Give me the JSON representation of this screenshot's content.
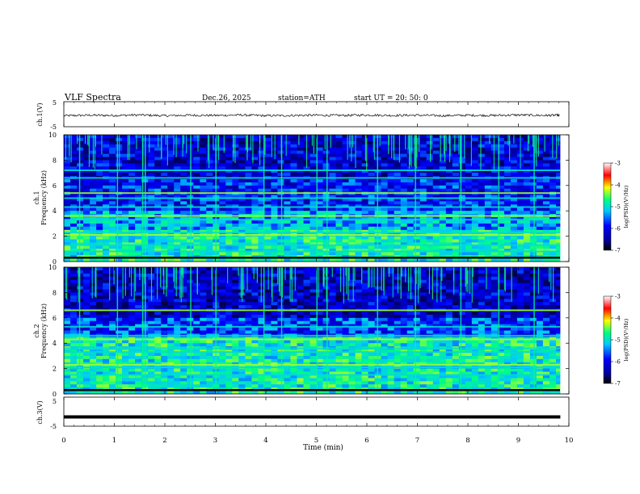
{
  "header": {
    "title": "VLF  Spectra",
    "date": "Dec.26, 2025",
    "station": "station=ATH",
    "start": "start  UT  =    20: 50: 0"
  },
  "colors": {
    "waveform": "#000000",
    "colormap": [
      "#000000",
      "#0000a0",
      "#0000ff",
      "#00c8ff",
      "#00ff80",
      "#ffff00",
      "#ff0000",
      "#ffffff"
    ]
  },
  "chart_data": [
    {
      "type": "line",
      "name": "ch1-waveform",
      "ylabel": "ch.1(V)",
      "ylim": [
        -5,
        5
      ],
      "yticks": [
        "5",
        "-5"
      ],
      "xlim": [
        0,
        10
      ],
      "x": [
        0,
        0.5,
        1,
        1.5,
        2,
        2.5,
        3,
        3.5,
        4,
        4.5,
        5,
        5.5,
        6,
        6.5,
        7,
        7.5,
        8,
        8.5,
        9,
        9.5,
        9.83
      ],
      "y": [
        -0.6,
        -0.4,
        -0.5,
        -0.3,
        -0.6,
        -0.4,
        -0.5,
        -0.3,
        -0.6,
        -0.5,
        -0.4,
        -0.5,
        -0.3,
        -0.5,
        -0.4,
        -0.6,
        -0.4,
        -0.5,
        -0.3,
        -0.5,
        -0.4
      ]
    },
    {
      "type": "heatmap",
      "name": "ch1-spectrogram",
      "ylabel": "ch.1\nFrequency  (kHz)",
      "ylim": [
        0,
        10
      ],
      "yticks": [
        "0",
        "2",
        "4",
        "6",
        "8",
        "10"
      ],
      "xlim": [
        0,
        10
      ],
      "colorbar": {
        "label": "log(PSD)(V²/Hz)",
        "range": [
          -7,
          -3
        ],
        "ticks": [
          "-3",
          "-4",
          "-5",
          "-6",
          "-7"
        ]
      },
      "bands_khz": [
        0.3,
        0.8,
        1.3,
        2.1,
        2.3,
        3.3,
        3.6,
        4.3,
        5.0,
        5.4,
        6.6,
        7.2
      ],
      "sferic_minutes": [
        0.3,
        1.05,
        1.55,
        1.6,
        2.5,
        3.0,
        3.95,
        4.3,
        5.0,
        5.2,
        6.2,
        6.95,
        7.85,
        8.6,
        9.3
      ]
    },
    {
      "type": "heatmap",
      "name": "ch2-spectrogram",
      "ylabel": "ch.2\nFrequency  (kHz)",
      "ylim": [
        0,
        10
      ],
      "yticks": [
        "0",
        "2",
        "4",
        "6",
        "8",
        "10"
      ],
      "xlim": [
        0,
        10
      ],
      "colorbar": {
        "label": "log(PSD)(V²/Hz)",
        "range": [
          -7,
          -3
        ],
        "ticks": [
          "-3",
          "-4",
          "-5",
          "-6",
          "-7"
        ]
      },
      "bands_khz": [
        0.3,
        1.5,
        2.1,
        2.3,
        3.3,
        3.6,
        4.3,
        4.6,
        5.3,
        6.6
      ],
      "sferic_minutes": [
        0.3,
        1.05,
        1.55,
        1.6,
        2.5,
        3.0,
        3.95,
        4.3,
        5.0,
        5.2,
        6.2,
        6.95,
        7.85,
        8.6,
        9.3
      ]
    },
    {
      "type": "line",
      "name": "ch3-waveform",
      "ylabel": "ch.3(V)",
      "ylim": [
        -5,
        5
      ],
      "yticks": [
        "5",
        "-5"
      ],
      "xlim": [
        0,
        10
      ],
      "x": [
        0,
        9.83
      ],
      "y": [
        -1.8,
        -1.8
      ]
    }
  ],
  "xaxis": {
    "label": "Time  (min)",
    "ticks": [
      "0",
      "1",
      "2",
      "3",
      "4",
      "5",
      "6",
      "7",
      "8",
      "9",
      "10"
    ]
  }
}
